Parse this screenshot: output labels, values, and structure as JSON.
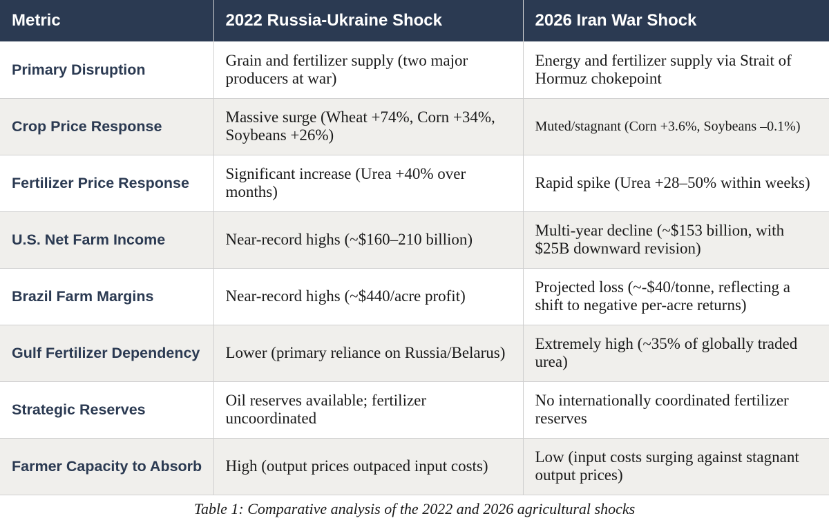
{
  "table": {
    "headers": [
      "Metric",
      "2022 Russia-Ukraine Shock",
      "2026 Iran War Shock"
    ],
    "rows": [
      {
        "metric": "Primary Disruption",
        "shock_2022": "Grain and fertilizer supply (two major producers at war)",
        "shock_2026": "Energy and fertilizer supply via Strait of Hormuz chokepoint"
      },
      {
        "metric": "Crop Price Response",
        "shock_2022": "Massive surge (Wheat +74%, Corn +34%, Soybeans +26%)",
        "shock_2026": "Muted/stagnant (Corn +3.6%, Soybeans –0.1%)"
      },
      {
        "metric": "Fertilizer Price Response",
        "shock_2022": "Significant increase (Urea +40% over months)",
        "shock_2026": "Rapid spike (Urea +28–50% within weeks)"
      },
      {
        "metric": "U.S. Net Farm Income",
        "shock_2022": "Near-record highs (~$160–210 billion)",
        "shock_2026": "Multi-year decline (~$153 billion, with $25B downward revision)"
      },
      {
        "metric": "Brazil Farm Margins",
        "shock_2022": "Near-record highs (~$440/acre profit)",
        "shock_2026": "Projected loss (~-$40/tonne, reflecting a shift to negative per-acre returns)"
      },
      {
        "metric": "Gulf Fertilizer Dependency",
        "shock_2022": "Lower (primary reliance on Russia/Belarus)",
        "shock_2026": "Extremely high (~35% of globally traded urea)"
      },
      {
        "metric": "Strategic Reserves",
        "shock_2022": "Oil reserves available; fertilizer uncoordinated",
        "shock_2026": "No internationally coordinated fertilizer reserves"
      },
      {
        "metric": "Farmer Capacity to Absorb",
        "shock_2022": "High (output prices outpaced input costs)",
        "shock_2026": "Low (input costs surging against stagnant output prices)"
      }
    ]
  },
  "caption": "Table 1: Comparative analysis of the 2022 and 2026 agricultural shocks"
}
